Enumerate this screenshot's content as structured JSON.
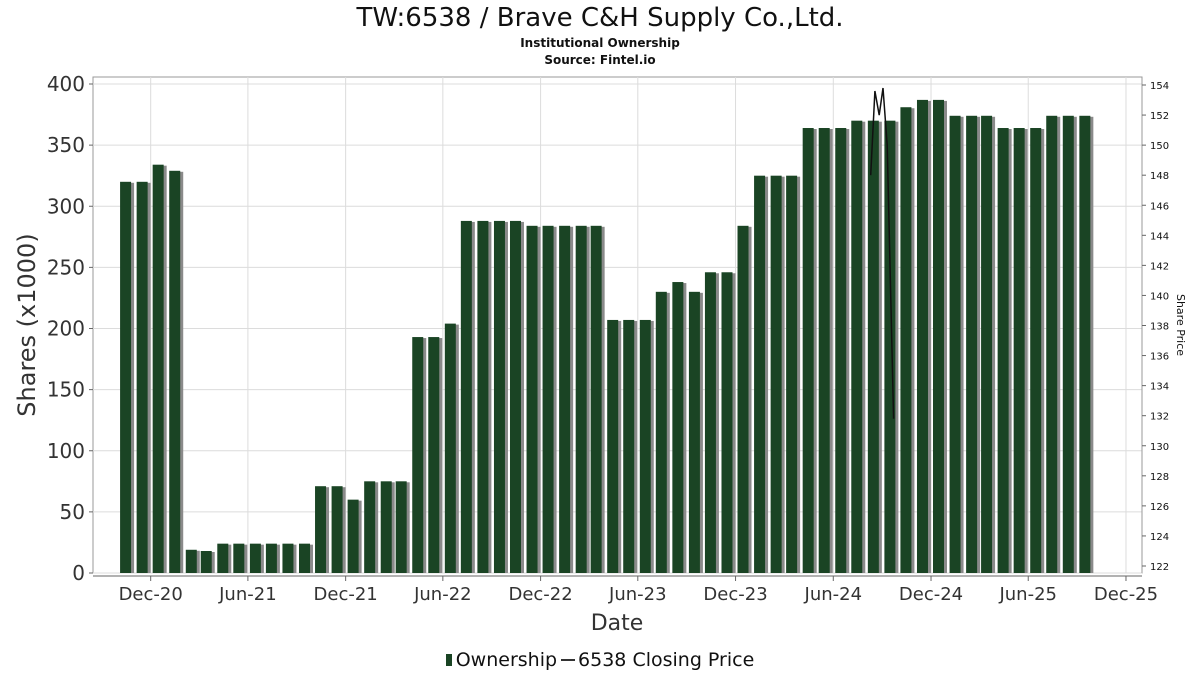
{
  "header": {
    "title": "TW:6538 / Brave C&H Supply Co.,Ltd.",
    "subtitle": "Institutional Ownership",
    "source": "Source: Fintel.io"
  },
  "legend": {
    "ownership_label": "Ownership",
    "price_label": "6538 Closing Price"
  },
  "colors": {
    "bar": "#1a4424",
    "bar_shadow": "#8a8a8a",
    "price_line": "#111111",
    "grid": "#dcdcdc"
  },
  "chart_data": {
    "type": "bar",
    "xlabel": "Date",
    "ylabel": "Shares (x1000)",
    "y2label": "Share Price",
    "ylim": [
      0,
      400
    ],
    "y2lim": [
      122,
      154
    ],
    "xlim": [
      "2020-08-15",
      "2025-12-31"
    ],
    "yticks": [
      0,
      50,
      100,
      150,
      200,
      250,
      300,
      350,
      400
    ],
    "y2ticks": [
      122,
      124,
      126,
      128,
      130,
      132,
      134,
      136,
      138,
      140,
      142,
      144,
      146,
      148,
      150,
      152,
      154
    ],
    "xticks": [
      {
        "date": "2020-12-01",
        "label": "Dec-20"
      },
      {
        "date": "2021-06-01",
        "label": "Jun-21"
      },
      {
        "date": "2021-12-01",
        "label": "Dec-21"
      },
      {
        "date": "2022-06-01",
        "label": "Jun-22"
      },
      {
        "date": "2022-12-01",
        "label": "Dec-22"
      },
      {
        "date": "2023-06-01",
        "label": "Jun-23"
      },
      {
        "date": "2023-12-01",
        "label": "Dec-23"
      },
      {
        "date": "2024-06-01",
        "label": "Jun-24"
      },
      {
        "date": "2024-12-01",
        "label": "Dec-24"
      },
      {
        "date": "2025-06-01",
        "label": "Jun-25"
      },
      {
        "date": "2025-12-01",
        "label": "Dec-25"
      }
    ],
    "grid": true,
    "legend_position": "bottom",
    "series": [
      {
        "name": "Ownership",
        "points": [
          {
            "date": "2020-10-15",
            "value": 320
          },
          {
            "date": "2020-11-15",
            "value": 320
          },
          {
            "date": "2020-12-15",
            "value": 334
          },
          {
            "date": "2021-01-15",
            "value": 329
          },
          {
            "date": "2021-02-15",
            "value": 19
          },
          {
            "date": "2021-03-15",
            "value": 18
          },
          {
            "date": "2021-04-15",
            "value": 24
          },
          {
            "date": "2021-05-15",
            "value": 24
          },
          {
            "date": "2021-06-15",
            "value": 24
          },
          {
            "date": "2021-07-15",
            "value": 24
          },
          {
            "date": "2021-08-15",
            "value": 24
          },
          {
            "date": "2021-09-15",
            "value": 24
          },
          {
            "date": "2021-10-15",
            "value": 71
          },
          {
            "date": "2021-11-15",
            "value": 71
          },
          {
            "date": "2021-12-15",
            "value": 60
          },
          {
            "date": "2022-01-15",
            "value": 75
          },
          {
            "date": "2022-02-15",
            "value": 75
          },
          {
            "date": "2022-03-15",
            "value": 75
          },
          {
            "date": "2022-04-15",
            "value": 193
          },
          {
            "date": "2022-05-15",
            "value": 193
          },
          {
            "date": "2022-06-15",
            "value": 204
          },
          {
            "date": "2022-07-15",
            "value": 288
          },
          {
            "date": "2022-08-15",
            "value": 288
          },
          {
            "date": "2022-09-15",
            "value": 288
          },
          {
            "date": "2022-10-15",
            "value": 288
          },
          {
            "date": "2022-11-15",
            "value": 284
          },
          {
            "date": "2022-12-15",
            "value": 284
          },
          {
            "date": "2023-01-15",
            "value": 284
          },
          {
            "date": "2023-02-15",
            "value": 284
          },
          {
            "date": "2023-03-15",
            "value": 284
          },
          {
            "date": "2023-04-15",
            "value": 207
          },
          {
            "date": "2023-05-15",
            "value": 207
          },
          {
            "date": "2023-06-15",
            "value": 207
          },
          {
            "date": "2023-07-15",
            "value": 230
          },
          {
            "date": "2023-08-15",
            "value": 238
          },
          {
            "date": "2023-09-15",
            "value": 230
          },
          {
            "date": "2023-10-15",
            "value": 246
          },
          {
            "date": "2023-11-15",
            "value": 246
          },
          {
            "date": "2023-12-15",
            "value": 284
          },
          {
            "date": "2024-01-15",
            "value": 325
          },
          {
            "date": "2024-02-15",
            "value": 325
          },
          {
            "date": "2024-03-15",
            "value": 325
          },
          {
            "date": "2024-04-15",
            "value": 364
          },
          {
            "date": "2024-05-15",
            "value": 364
          },
          {
            "date": "2024-06-15",
            "value": 364
          },
          {
            "date": "2024-07-15",
            "value": 370
          },
          {
            "date": "2024-08-15",
            "value": 370
          },
          {
            "date": "2024-09-15",
            "value": 370
          },
          {
            "date": "2024-10-15",
            "value": 381
          },
          {
            "date": "2024-11-15",
            "value": 387
          },
          {
            "date": "2024-12-15",
            "value": 387
          },
          {
            "date": "2025-01-15",
            "value": 374
          },
          {
            "date": "2025-02-15",
            "value": 374
          },
          {
            "date": "2025-03-15",
            "value": 374
          },
          {
            "date": "2025-04-15",
            "value": 364
          },
          {
            "date": "2025-05-15",
            "value": 364
          },
          {
            "date": "2025-06-15",
            "value": 364
          },
          {
            "date": "2025-07-15",
            "value": 374
          },
          {
            "date": "2025-08-15",
            "value": 374
          },
          {
            "date": "2025-09-15",
            "value": 374
          }
        ]
      },
      {
        "name": "6538 Closing Price",
        "axis": "right",
        "points": [
          {
            "date": "2024-08-10",
            "value": 148.0
          },
          {
            "date": "2024-08-18",
            "value": 153.6
          },
          {
            "date": "2024-08-26",
            "value": 152.0
          },
          {
            "date": "2024-09-02",
            "value": 153.8
          },
          {
            "date": "2024-09-10",
            "value": 150.0
          },
          {
            "date": "2024-09-22",
            "value": 131.8
          }
        ]
      }
    ]
  }
}
